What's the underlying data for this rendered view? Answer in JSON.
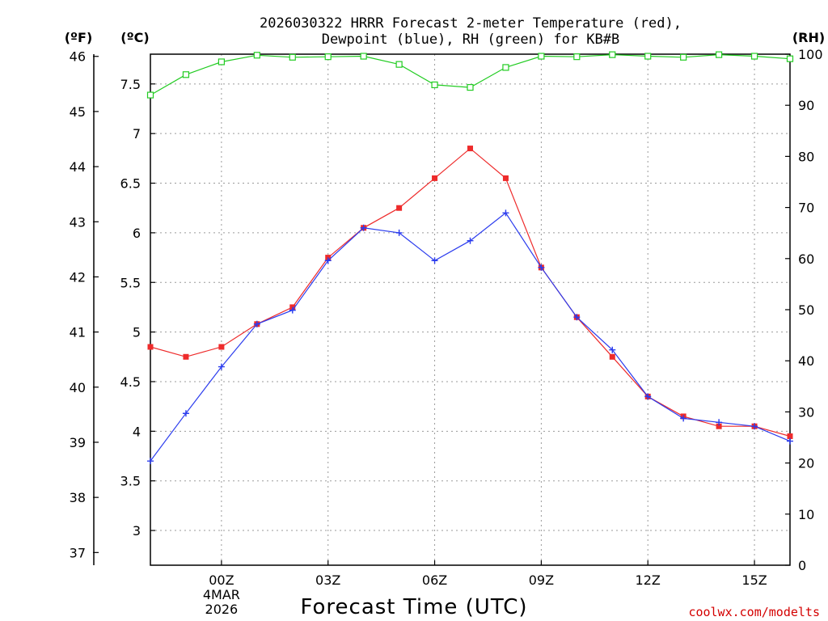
{
  "chart_data": {
    "type": "line",
    "title_line1": "2026030322 HRRR Forecast 2-meter Temperature (red),",
    "title_line2": "Dewpoint (blue), RH (green) for KB#B",
    "xlabel": "Forecast Time (UTC)",
    "credit": "coolwx.com/modelts",
    "y_left_outer_label": "(ºF)",
    "y_left_inner_label": "(ºC)",
    "y_right_label": "(RH)",
    "x_hours": [
      -2,
      -1,
      0,
      1,
      2,
      3,
      4,
      5,
      6,
      7,
      8,
      9,
      10,
      11,
      12,
      13,
      14,
      15,
      16
    ],
    "xlim": [
      -2,
      16
    ],
    "x_ticks": [
      {
        "hour": 0,
        "label": "00Z",
        "date_line1": "4MAR",
        "date_line2": "2026"
      },
      {
        "hour": 3,
        "label": "03Z"
      },
      {
        "hour": 6,
        "label": "06Z"
      },
      {
        "hour": 9,
        "label": "09Z"
      },
      {
        "hour": 12,
        "label": "12Z"
      },
      {
        "hour": 15,
        "label": "15Z"
      }
    ],
    "ylim_c": [
      2.65,
      7.8
    ],
    "ylim_f": [
      36.77,
      46.04
    ],
    "ylim_rh": [
      0,
      100
    ],
    "y_ticks_c": [
      "3",
      "3.5",
      "4",
      "4.5",
      "5",
      "5.5",
      "6",
      "6.5",
      "7",
      "7.5"
    ],
    "y_ticks_f": [
      "37",
      "38",
      "39",
      "40",
      "41",
      "42",
      "43",
      "44",
      "45",
      "46"
    ],
    "y_ticks_rh": [
      "0",
      "10",
      "20",
      "30",
      "40",
      "50",
      "60",
      "70",
      "80",
      "90",
      "100"
    ],
    "series": [
      {
        "name": "Temperature",
        "color": "#ee2b2b",
        "marker": "filled-square",
        "units": "C",
        "values": [
          4.85,
          4.75,
          4.85,
          5.08,
          5.25,
          5.75,
          6.05,
          6.25,
          6.55,
          6.85,
          6.55,
          5.65,
          5.15,
          4.75,
          4.35,
          4.15,
          4.05,
          4.05,
          3.95
        ]
      },
      {
        "name": "Dewpoint",
        "color": "#2b3cee",
        "marker": "plus",
        "units": "C",
        "values": [
          3.7,
          4.18,
          4.65,
          5.08,
          5.22,
          5.72,
          6.05,
          6.0,
          5.72,
          5.92,
          6.2,
          5.65,
          5.15,
          4.82,
          4.35,
          4.13,
          4.09,
          4.05,
          3.9
        ]
      },
      {
        "name": "RH",
        "color": "#22cc22",
        "marker": "open-square",
        "units": "%",
        "values": [
          92,
          96,
          98.5,
          99.8,
          99.4,
          99.5,
          99.6,
          98,
          94,
          93.5,
          97.4,
          99.6,
          99.5,
          99.9,
          99.6,
          99.4,
          99.9,
          99.6,
          99.1
        ]
      }
    ]
  }
}
